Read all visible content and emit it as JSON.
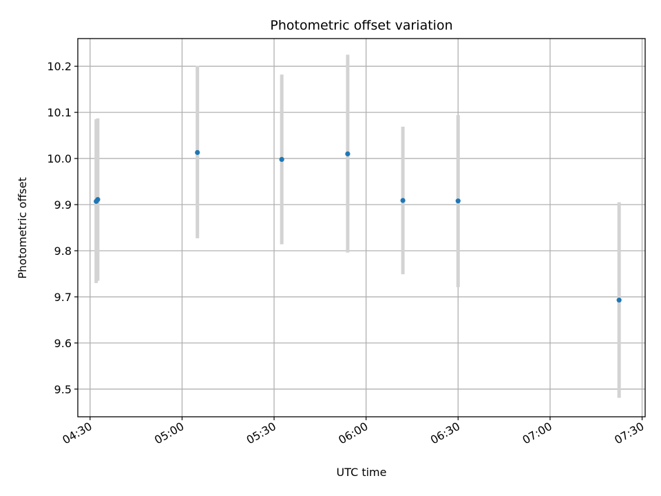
{
  "chart_data": {
    "type": "scatter",
    "title": "Photometric offset variation",
    "xlabel": "UTC time",
    "ylabel": "Photometric offset",
    "x_axis_type": "time",
    "xlim": [
      "04:26",
      "07:31"
    ],
    "ylim": [
      9.44,
      10.26
    ],
    "x_ticks": [
      "04:30",
      "05:00",
      "05:30",
      "06:00",
      "06:30",
      "07:00",
      "07:30"
    ],
    "y_ticks": [
      9.5,
      9.6,
      9.7,
      9.8,
      9.9,
      10.0,
      10.1,
      10.2
    ],
    "y_tick_labels": [
      "9.5",
      "9.6",
      "9.7",
      "9.8",
      "9.9",
      "10.0",
      "10.1",
      "10.2"
    ],
    "grid": true,
    "marker_color": "#1f77b4",
    "errorbar_color": "#d3d3d3",
    "points": [
      {
        "time": "04:32:00",
        "y": 9.907,
        "err_low": 9.73,
        "err_high": 10.085
      },
      {
        "time": "04:32:30",
        "y": 9.911,
        "err_low": 9.735,
        "err_high": 10.087
      },
      {
        "time": "05:05:00",
        "y": 10.013,
        "err_low": 9.827,
        "err_high": 10.201
      },
      {
        "time": "05:32:30",
        "y": 9.998,
        "err_low": 9.814,
        "err_high": 10.182
      },
      {
        "time": "05:54:00",
        "y": 10.01,
        "err_low": 9.796,
        "err_high": 10.225
      },
      {
        "time": "06:12:00",
        "y": 9.909,
        "err_low": 9.749,
        "err_high": 10.069
      },
      {
        "time": "06:30:00",
        "y": 9.908,
        "err_low": 9.721,
        "err_high": 10.094
      },
      {
        "time": "07:22:30",
        "y": 9.693,
        "err_low": 9.481,
        "err_high": 9.905
      }
    ]
  }
}
